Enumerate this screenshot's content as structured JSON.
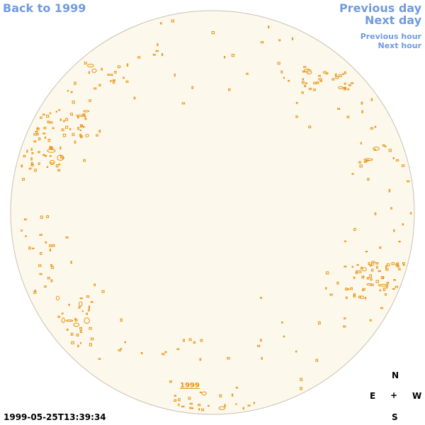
{
  "nav": {
    "back_label": "Back to 1999",
    "previous_day_label": "Previous day",
    "next_day_label": "Next day",
    "previous_hour_label": "Previous hour",
    "next_hour_label": "Next hour"
  },
  "image": {
    "year_label": "1999",
    "timestamp": "1999-05-25T13:39:34"
  },
  "compass": {
    "north": "N",
    "east": "E",
    "center": "+",
    "west": "W",
    "south": "S"
  },
  "colors": {
    "link": "#6f9be0",
    "disk_fill": "#fdf8ec",
    "disk_edge": "#c9c2b0",
    "feature": "#e89414"
  }
}
